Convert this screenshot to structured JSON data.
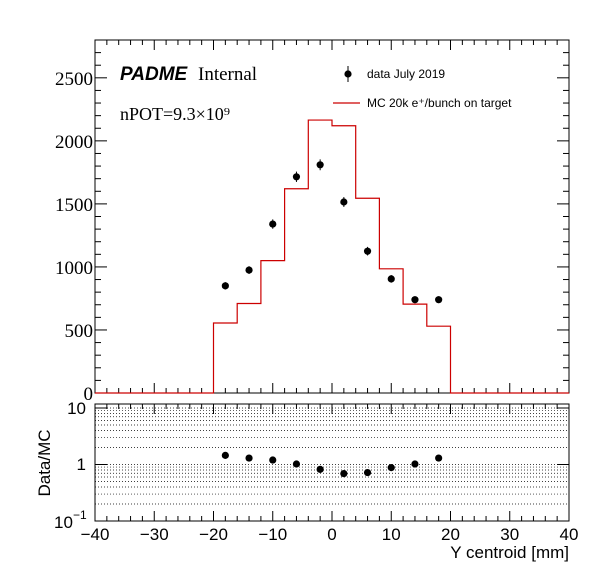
{
  "chart_data": [
    {
      "type": "histogram",
      "panel": "top",
      "xlim": [
        -40,
        40
      ],
      "ylim": [
        0,
        2800
      ],
      "yticks": [
        0,
        500,
        1000,
        1500,
        2000,
        2500
      ],
      "yticklabels": [
        "0",
        "500",
        "1000",
        "1500",
        "2000",
        "2500"
      ],
      "grid": false,
      "legend_position": "top-right",
      "annotations": {
        "brand": "PADME",
        "brand_suffix": "Internal",
        "npot": "nPOT=9.3×10⁹"
      },
      "series": [
        {
          "name": "data July 2019",
          "style": "points-with-error-bars",
          "color": "#000000",
          "x": [
            -18,
            -14,
            -10,
            -6,
            -2,
            2,
            6,
            10,
            14,
            18
          ],
          "y": [
            850,
            975,
            1340,
            1715,
            1810,
            1515,
            1125,
            905,
            740,
            740
          ],
          "yerr": [
            29,
            31,
            37,
            41,
            43,
            39,
            34,
            30,
            27,
            27
          ]
        },
        {
          "name": "MC 20k e⁺/bunch on target",
          "style": "step",
          "color": "#cc0000",
          "bin_edges": [
            -40,
            -36,
            -32,
            -28,
            -24,
            -20,
            -16,
            -12,
            -8,
            -4,
            0,
            4,
            8,
            12,
            16,
            20,
            24,
            28,
            32,
            36,
            40
          ],
          "y": [
            0,
            0,
            0,
            0,
            0,
            555,
            710,
            1050,
            1620,
            2165,
            2120,
            1545,
            985,
            705,
            530,
            0,
            0,
            0,
            0,
            0
          ]
        }
      ]
    },
    {
      "type": "scatter",
      "panel": "ratio",
      "ylabel": "Data/MC",
      "xlabel": "Y centroid [mm]",
      "xlim": [
        -40,
        40
      ],
      "ylim": [
        0.1,
        10
      ],
      "yscale": "log",
      "xticks": [
        -40,
        -30,
        -20,
        -10,
        0,
        10,
        20,
        30,
        40
      ],
      "xticklabels": [
        "−40",
        "−30",
        "−20",
        "−10",
        "0",
        "10",
        "20",
        "30",
        "40"
      ],
      "yticks": [
        0.1,
        1,
        10
      ],
      "ytick_base": "10",
      "ytick_exp_minus1": "−1",
      "ytick_one": "1",
      "ytick_ten": "10",
      "grid": true,
      "series": [
        {
          "name": "",
          "color": "#000000",
          "x": [
            -18,
            -14,
            -10,
            -6,
            -2,
            2,
            6,
            10,
            14,
            18
          ],
          "y": [
            1.45,
            1.3,
            1.2,
            1.02,
            0.82,
            0.69,
            0.72,
            0.88,
            1.02,
            1.3
          ],
          "yerr": [
            0.06,
            0.05,
            0.04,
            0.03,
            0.02,
            0.02,
            0.03,
            0.03,
            0.04,
            0.06
          ]
        }
      ]
    }
  ]
}
